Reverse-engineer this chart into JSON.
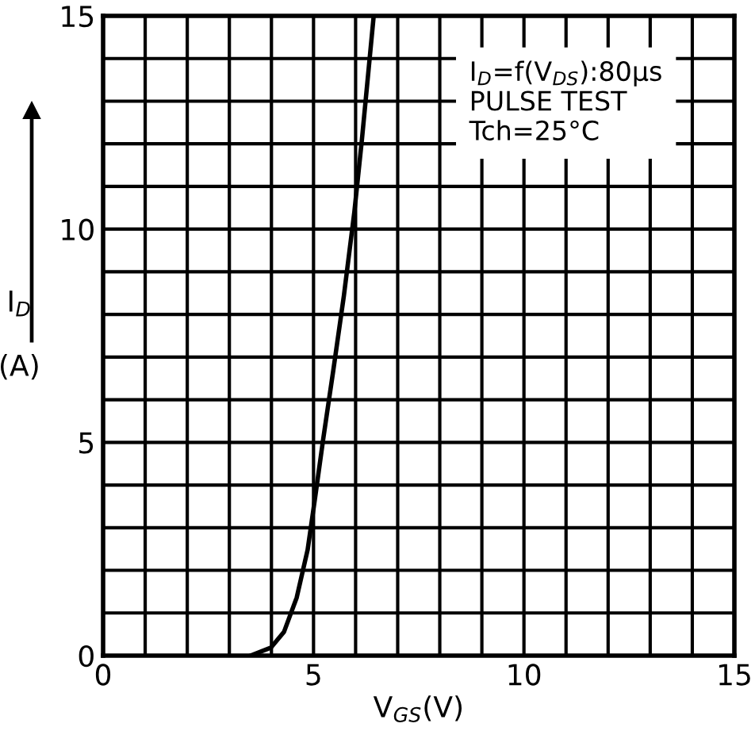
{
  "chart_data": {
    "type": "line",
    "xlabel": "V$_{GS}$(V)",
    "ylabel": "I$_{D}$\n\n(A)",
    "annotations": [
      "I$_{D}$=f(V$_{DS}$):80μs\nPULSE TEST\nTch=25°C"
    ],
    "x": [
      3.5,
      3.99,
      4.3,
      4.6,
      4.86,
      5.04,
      5.23,
      5.47,
      5.72,
      5.97,
      6.15,
      6.43
    ],
    "series": [
      {
        "color": "#000000",
        "values": [
          0,
          0.19,
          0.56,
          1.36,
          2.48,
          3.72,
          5.08,
          6.69,
          8.43,
          10.4,
          12.1,
          15
        ]
      }
    ],
    "xlim": [
      0,
      15
    ],
    "ylim": [
      0,
      15
    ],
    "xticks": [
      0,
      {
        "value": 1,
        "label": null
      },
      {
        "value": 2,
        "label": null
      },
      {
        "value": 3,
        "label": null
      },
      {
        "value": 4,
        "label": null
      },
      5,
      {
        "value": 6,
        "label": null
      },
      {
        "value": 7,
        "label": null
      },
      {
        "value": 8,
        "label": null
      },
      {
        "value": 9,
        "label": null
      },
      10,
      {
        "value": 11,
        "label": null
      },
      {
        "value": 12,
        "label": null
      },
      {
        "value": 13,
        "label": null
      },
      {
        "value": 14,
        "label": null
      },
      15
    ],
    "yticks": [
      0,
      {
        "value": 1,
        "label": null
      },
      {
        "value": 2,
        "label": null
      },
      {
        "value": 3,
        "label": null
      },
      {
        "value": 4,
        "label": null
      },
      5,
      {
        "value": 6,
        "label": null
      },
      {
        "value": 7,
        "label": null
      },
      {
        "value": 8,
        "label": null
      },
      {
        "value": 9,
        "label": null
      },
      10,
      {
        "value": 11,
        "label": null
      },
      {
        "value": 12,
        "label": null
      },
      {
        "value": 13,
        "label": null
      },
      {
        "value": 14,
        "label": null
      },
      15
    ],
    "grid": true,
    "line_style": "solid",
    "marker": "none"
  }
}
